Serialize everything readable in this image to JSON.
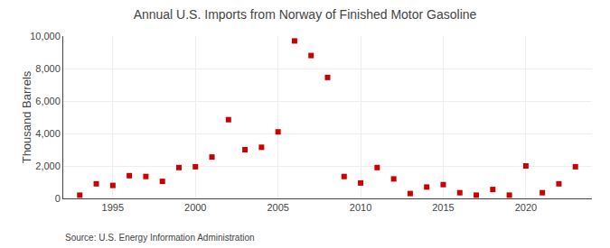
{
  "chart_data": {
    "type": "scatter",
    "title": "Annual U.S. Imports from Norway of Finished Motor Gasoline",
    "ylabel": "Thousand Barrels",
    "annotations": [
      "Source: U.S. Energy Information Administration"
    ],
    "x": [
      1993,
      1994,
      1995,
      1996,
      1997,
      1998,
      1999,
      2000,
      2001,
      2002,
      2003,
      2004,
      2005,
      2006,
      2007,
      2008,
      2009,
      2010,
      2011,
      2012,
      2013,
      2014,
      2015,
      2016,
      2017,
      2018,
      2019,
      2020,
      2021,
      2022,
      2023
    ],
    "values": [
      200,
      900,
      800,
      1400,
      1350,
      1050,
      1900,
      1950,
      2550,
      4850,
      3000,
      3150,
      4100,
      9700,
      8800,
      7450,
      1350,
      950,
      1900,
      1200,
      300,
      700,
      850,
      350,
      200,
      550,
      200,
      2000,
      350,
      900,
      1950
    ],
    "color": "#cc0000",
    "marker": "square",
    "xlim": [
      1992,
      2024
    ],
    "xticks": [
      1995,
      2000,
      2005,
      2010,
      2015,
      2020
    ],
    "ylim": [
      0,
      10000
    ],
    "yticks": [
      0,
      {
        "value": 2000,
        "label": "2,000"
      },
      {
        "value": 4000,
        "label": "4,000"
      },
      {
        "value": 6000,
        "label": "6,000"
      },
      {
        "value": 8000,
        "label": "8,000"
      },
      {
        "value": 10000,
        "label": "10,000"
      }
    ],
    "grid": true
  }
}
